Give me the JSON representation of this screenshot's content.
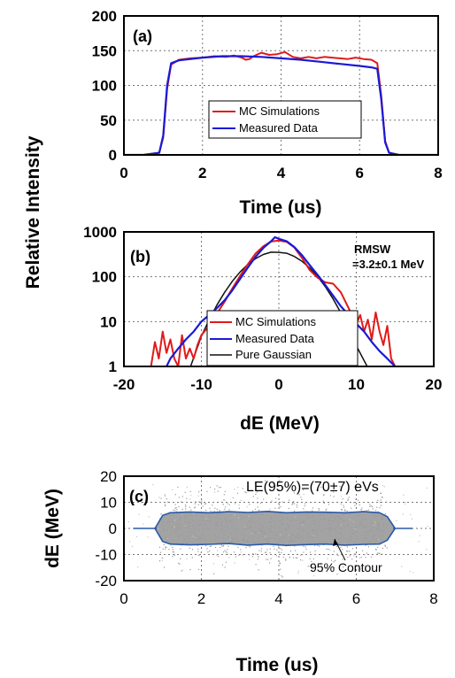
{
  "figure": {
    "shared_ylabel": "Relative Intensity"
  },
  "chart_data": [
    {
      "type": "line",
      "panel_label": "(a)",
      "xlabel": "Time (us)",
      "ylabel": "Relative Intensity",
      "xlim": [
        0,
        8
      ],
      "ylim": [
        0,
        200
      ],
      "xticks": [
        0,
        2,
        4,
        6,
        8
      ],
      "yticks": [
        0,
        50,
        100,
        150,
        200
      ],
      "grid": true,
      "legend_position": "center",
      "colors": {
        "mc": "#e11a1a",
        "measured": "#1a1ad6"
      },
      "series": [
        {
          "name": "MC Simulations",
          "x": [
            0.0,
            0.5,
            0.9,
            1.0,
            1.1,
            1.2,
            1.4,
            1.7,
            2.0,
            2.3,
            2.6,
            2.8,
            3.0,
            3.1,
            3.2,
            3.3,
            3.5,
            3.7,
            3.9,
            4.1,
            4.3,
            4.5,
            4.7,
            4.9,
            5.1,
            5.3,
            5.5,
            5.7,
            5.9,
            6.1,
            6.3,
            6.45,
            6.55,
            6.65,
            6.75,
            7.0,
            7.5,
            8.0
          ],
          "y": [
            0,
            0,
            3,
            25,
            95,
            130,
            137,
            139,
            140,
            142,
            141,
            143,
            140,
            137,
            138,
            142,
            147,
            144,
            145,
            148,
            141,
            139,
            141,
            139,
            141,
            140,
            139,
            138,
            140,
            138,
            137,
            132,
            85,
            20,
            3,
            0,
            0,
            0
          ]
        },
        {
          "name": "Measured Data",
          "x": [
            0.0,
            0.5,
            0.9,
            1.0,
            1.1,
            1.2,
            1.4,
            1.7,
            2.0,
            2.5,
            3.0,
            3.5,
            4.0,
            4.5,
            5.0,
            5.5,
            6.0,
            6.3,
            6.45,
            6.55,
            6.65,
            6.75,
            7.0,
            7.5,
            8.0
          ],
          "y": [
            0,
            0,
            3,
            28,
            100,
            132,
            136,
            138,
            140,
            142,
            142,
            141,
            139,
            137,
            134,
            131,
            128,
            126,
            124,
            80,
            18,
            3,
            0,
            0,
            0
          ]
        }
      ]
    },
    {
      "type": "line",
      "panel_label": "(b)",
      "xlabel": "dE (MeV)",
      "ylabel": "Relative Intensity",
      "xlim": [
        -20,
        20
      ],
      "ylim": [
        1,
        1000
      ],
      "yscale": "log",
      "xticks": [
        -20,
        -10,
        0,
        10,
        20
      ],
      "yticks": [
        1,
        10,
        100,
        1000
      ],
      "grid": true,
      "legend_position": "bottom-center",
      "annotation": [
        "RMSW",
        "=3.2±0.1 MeV"
      ],
      "colors": {
        "mc": "#e11a1a",
        "measured": "#1a1ad6",
        "gaussian": "#111111"
      },
      "series": [
        {
          "name": "MC Simulations",
          "x": [
            -16.5,
            -16,
            -15.5,
            -15,
            -14.5,
            -14,
            -13.5,
            -13,
            -12.5,
            -12,
            -11.5,
            -11,
            -10.5,
            -10,
            -9,
            -8,
            -7,
            -6,
            -5,
            -4,
            -3,
            -2,
            -1,
            0,
            1,
            2,
            3,
            4,
            5,
            6,
            7,
            8,
            9,
            10,
            10.5,
            11,
            11.5,
            12,
            12.5,
            13,
            13.5,
            14,
            14.5,
            15
          ],
          "y": [
            1.0,
            3.5,
            1.5,
            6.0,
            2.0,
            4.0,
            1.5,
            1.0,
            5.0,
            1.5,
            2.5,
            1.5,
            3.0,
            5.0,
            8.0,
            15,
            28,
            55,
            105,
            190,
            330,
            480,
            610,
            640,
            600,
            450,
            260,
            140,
            95,
            75,
            70,
            45,
            20,
            9,
            14,
            6,
            11,
            4,
            16,
            6,
            3,
            8,
            1.5,
            1.0
          ]
        },
        {
          "name": "Measured Data",
          "x": [
            -14.5,
            -14,
            -13,
            -12,
            -11,
            -10,
            -9,
            -8,
            -7,
            -6,
            -5,
            -4,
            -3,
            -2,
            -1,
            -0.5,
            0,
            1,
            2,
            3,
            4,
            5,
            6,
            7,
            8,
            9,
            10,
            11,
            12,
            13,
            14,
            15
          ],
          "y": [
            1.0,
            1.5,
            2.5,
            4.0,
            6.0,
            10,
            14,
            20,
            30,
            50,
            90,
            160,
            280,
            440,
            620,
            760,
            700,
            620,
            460,
            300,
            180,
            110,
            65,
            38,
            22,
            14,
            9,
            6,
            3.5,
            2.2,
            1.5,
            1.0
          ]
        },
        {
          "name": "Pure Gaussian",
          "x": [
            -11.4,
            -10,
            -9,
            -8,
            -7,
            -6,
            -5,
            -4,
            -3,
            -2,
            -1,
            0,
            1,
            2,
            3,
            4,
            5,
            6,
            7,
            8,
            9,
            10,
            11.4
          ],
          "y": [
            1.0,
            4.7,
            11.0,
            23.3,
            45.0,
            79.5,
            128,
            189,
            255,
            314,
            354,
            350,
            335,
            284,
            220,
            156,
            101,
            60.0,
            32.0,
            15.8,
            7.0,
            2.9,
            1.0
          ]
        }
      ]
    },
    {
      "type": "scatter",
      "panel_label": "(c)",
      "xlabel": "Time (us)",
      "ylabel": "dE (MeV)",
      "xlim": [
        0,
        8
      ],
      "ylim": [
        -20,
        20
      ],
      "xticks": [
        0,
        2,
        4,
        6,
        8
      ],
      "yticks": [
        -20,
        -10,
        0,
        10,
        20
      ],
      "grid": true,
      "annotation": "LE(95%)=(70±7) eVs",
      "contour_label": "95% Contour",
      "colors": {
        "points": "#9a9a9a",
        "contour": "#2a5aa8"
      },
      "series": [
        {
          "name": "95% Contour",
          "x": [
            0.8,
            1.0,
            1.2,
            1.7,
            2.2,
            2.7,
            3.2,
            3.7,
            4.2,
            4.7,
            5.2,
            5.7,
            6.2,
            6.6,
            6.8,
            7.0
          ],
          "y_upper": [
            0,
            5.0,
            6.0,
            6.3,
            6.0,
            6.4,
            6.1,
            6.5,
            6.0,
            6.3,
            6.2,
            6.0,
            6.4,
            6.0,
            4.5,
            0
          ],
          "y_lower": [
            0,
            -5.0,
            -6.0,
            -6.3,
            -6.1,
            -5.8,
            -6.4,
            -6.0,
            -6.5,
            -6.2,
            -6.0,
            -6.4,
            -6.1,
            -6.0,
            -4.5,
            0
          ]
        }
      ]
    }
  ]
}
